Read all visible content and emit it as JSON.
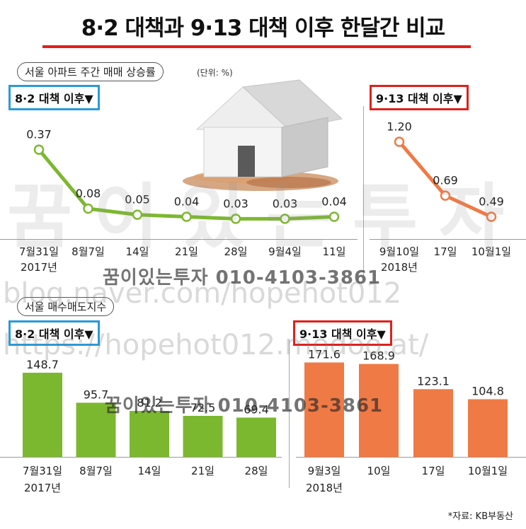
{
  "title": "8·2 대책과 9·13 대책 이후 한달간 비교",
  "top_section_label": "서울 아파트 주간 매매 상승률",
  "top_unit": "(단위: %)",
  "bottom_section_label": "서울 매수매도지수",
  "tag_82": "8·2 대책 이후▼",
  "tag_913": "9·13 대책 이후▼",
  "watermark_text": "꿈이있는투자 010-4103-3861",
  "url_1": "blog.naver.com/hopehot012",
  "url_2": "https://hopehot012.modoo.at/",
  "big_watermark": "꿈이있는투자",
  "source": "*자료: KB부동산",
  "colors": {
    "green": "#7cb82f",
    "orange": "#f07a45",
    "blue_tag": "#2a9ad8",
    "red_tag": "#e0201c"
  },
  "chart_data": [
    {
      "type": "line",
      "title": "서울 아파트 주간 매매 상승률",
      "unit": "%",
      "panel": "8·2 대책 이후",
      "categories": [
        "7월31일",
        "8월7일",
        "14일",
        "21일",
        "28일",
        "9월4일",
        "11일"
      ],
      "year_label": "2017년",
      "values": [
        0.37,
        0.08,
        0.05,
        0.04,
        0.03,
        0.03,
        0.04
      ],
      "labels": [
        "0.37",
        "0.08",
        "0.05",
        "0.04",
        "0.03",
        "0.03",
        "0.04"
      ],
      "ylim": [
        0,
        0.4
      ],
      "color": "#7cb82f"
    },
    {
      "type": "line",
      "title": "서울 아파트 주간 매매 상승률",
      "unit": "%",
      "panel": "9·13 대책 이후",
      "categories": [
        "9월10일",
        "17일",
        "10월1일"
      ],
      "year_label": "2018년",
      "values": [
        1.2,
        0.69,
        0.49
      ],
      "labels": [
        "1.20",
        "0.69",
        "0.49"
      ],
      "ylim": [
        0.4,
        1.25
      ],
      "color": "#f07a45"
    },
    {
      "type": "bar",
      "title": "서울 매수매도지수",
      "panel": "8·2 대책 이후",
      "categories": [
        "7월31일",
        "8월7일",
        "14일",
        "21일",
        "28일"
      ],
      "year_label": "2017년",
      "values": [
        148.7,
        95.7,
        81.2,
        72.5,
        69.4
      ],
      "labels": [
        "148.7",
        "95.7",
        "81.2",
        "72.5",
        "69.4"
      ],
      "ylim": [
        0,
        160
      ],
      "color": "#7cb82f"
    },
    {
      "type": "bar",
      "title": "서울 매수매도지수",
      "panel": "9·13 대책 이후",
      "categories": [
        "9월3일",
        "10일",
        "17일",
        "10월1일"
      ],
      "year_label": "2018년",
      "values": [
        171.6,
        168.9,
        123.1,
        104.8
      ],
      "labels": [
        "171.6",
        "168.9",
        "123.1",
        "104.8"
      ],
      "ylim": [
        0,
        180
      ],
      "color": "#f07a45"
    }
  ]
}
